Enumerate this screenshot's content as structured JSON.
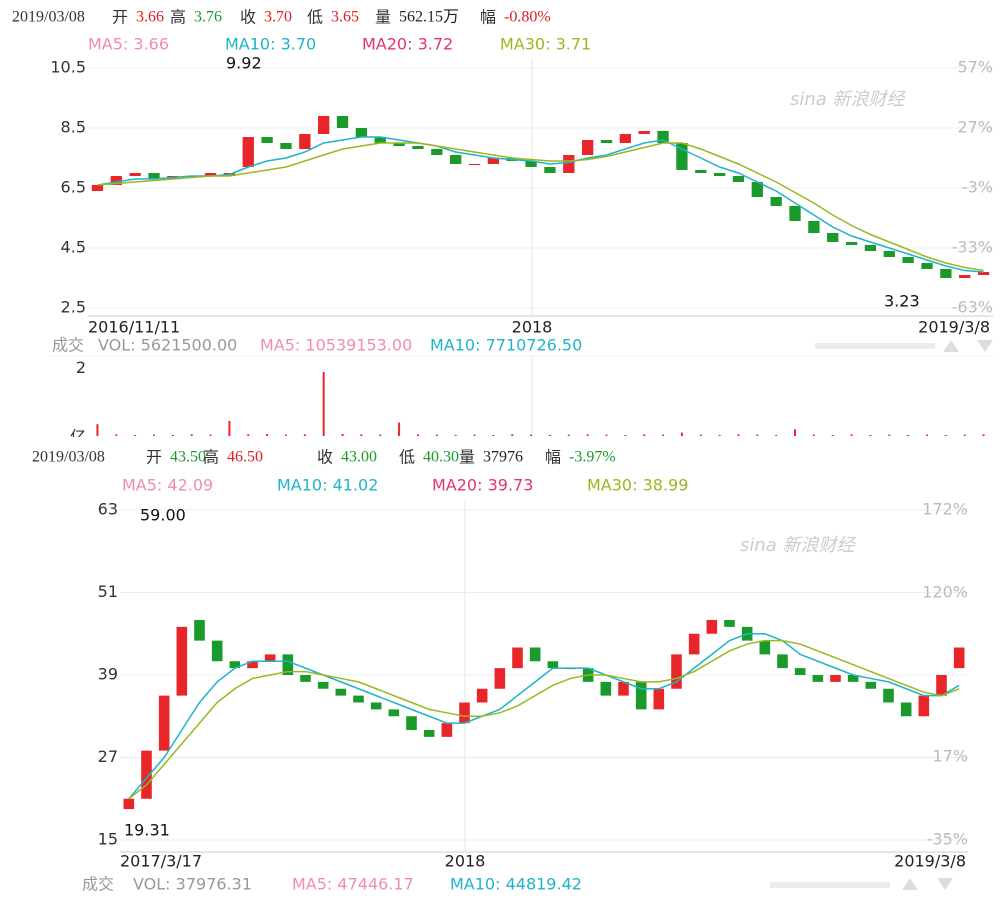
{
  "chart_data": [
    {
      "type": "candlestick",
      "date": "2019/03/08",
      "header": [
        {
          "label": "开",
          "value": "3.66",
          "color": "#e0201f"
        },
        {
          "label": "高",
          "value": "3.76",
          "color": "#1a9a2a"
        },
        {
          "label": "收",
          "value": "3.70",
          "color": "#e0201f"
        },
        {
          "label": "低",
          "value": "3.65",
          "color": "#e0201f"
        },
        {
          "label": "量",
          "value": "562.15万",
          "color": "#222222"
        },
        {
          "label": "幅",
          "value": "-0.80%",
          "color": "#e0201f"
        }
      ],
      "ma_legend": [
        {
          "text": "MA5: 3.66",
          "color": "#f08cb0"
        },
        {
          "text": "MA10: 3.70",
          "color": "#1eb4cc"
        },
        {
          "text": "MA20: 3.72",
          "color": "#e0336f"
        },
        {
          "text": "MA30: 3.71",
          "color": "#9ab81e"
        }
      ],
      "watermark": "sina 新浪财经",
      "open": [
        6.4,
        6.6,
        6.9,
        7.0,
        6.8,
        6.9,
        6.9,
        6.9,
        7.2,
        8.2,
        8.0,
        7.8,
        8.3,
        8.9,
        8.5,
        8.2,
        8.0,
        7.9,
        7.8,
        7.6,
        7.3,
        7.3,
        7.5,
        7.4,
        7.2,
        7.0,
        7.6,
        8.1,
        8.0,
        8.3,
        8.4,
        8.0,
        7.1,
        7.0,
        6.9,
        6.7,
        6.2,
        5.9,
        5.4,
        5.0,
        4.7,
        4.6,
        4.4,
        4.2,
        4.0,
        3.8,
        3.5,
        3.6
      ],
      "close": [
        6.6,
        6.9,
        7.0,
        6.8,
        6.9,
        6.9,
        7.0,
        7.0,
        8.2,
        8.0,
        7.8,
        8.3,
        8.9,
        8.5,
        8.2,
        8.0,
        7.9,
        7.8,
        7.6,
        7.3,
        7.3,
        7.5,
        7.4,
        7.2,
        7.0,
        7.6,
        8.1,
        8.0,
        8.3,
        8.4,
        8.0,
        7.1,
        7.0,
        6.9,
        6.7,
        6.2,
        5.9,
        5.4,
        5.0,
        4.7,
        4.6,
        4.4,
        4.2,
        4.0,
        3.8,
        3.5,
        3.6,
        3.7
      ],
      "up_color": "#e8262a",
      "down_color": "#1a9a2a",
      "ma_lines": [
        {
          "color": "#1eb4cc",
          "values": [
            6.6,
            6.7,
            6.8,
            6.8,
            6.85,
            6.9,
            6.9,
            6.95,
            7.2,
            7.4,
            7.5,
            7.7,
            8.0,
            8.1,
            8.2,
            8.2,
            8.1,
            8.0,
            7.9,
            7.7,
            7.6,
            7.5,
            7.45,
            7.4,
            7.3,
            7.35,
            7.5,
            7.6,
            7.8,
            8.0,
            8.1,
            7.8,
            7.5,
            7.2,
            7.0,
            6.7,
            6.4,
            6.0,
            5.6,
            5.2,
            4.9,
            4.7,
            4.5,
            4.3,
            4.1,
            3.9,
            3.75,
            3.7
          ]
        },
        {
          "color": "#9ab81e",
          "values": [
            6.6,
            6.65,
            6.7,
            6.75,
            6.8,
            6.85,
            6.9,
            6.9,
            7.0,
            7.1,
            7.2,
            7.4,
            7.6,
            7.8,
            7.9,
            8.0,
            8.0,
            8.0,
            7.9,
            7.8,
            7.7,
            7.6,
            7.5,
            7.45,
            7.4,
            7.4,
            7.45,
            7.55,
            7.7,
            7.85,
            8.0,
            8.0,
            7.8,
            7.55,
            7.3,
            7.0,
            6.7,
            6.35,
            6.0,
            5.6,
            5.25,
            4.95,
            4.7,
            4.45,
            4.2,
            4.0,
            3.85,
            3.75
          ]
        }
      ],
      "ylim": [
        2.5,
        10.5
      ],
      "yticks": [
        10.5,
        8.5,
        6.5,
        4.5,
        2.5
      ],
      "y2lim": [
        -63,
        57
      ],
      "y2ticks": [
        {
          "value": 57,
          "label": "57%"
        },
        {
          "value": 27,
          "label": "27%"
        },
        {
          "value": -3,
          "label": "-3%"
        },
        {
          "value": -33,
          "label": "-33%"
        },
        {
          "value": -63,
          "label": "-63%"
        }
      ],
      "x_labels": [
        "2016/11/11",
        "2018",
        "2019/3/8"
      ],
      "annotations": [
        "9.92",
        "3.23"
      ],
      "vol_legend": [
        {
          "text": "成交",
          "color": "#999999"
        },
        {
          "text": "VOL: 5621500.00",
          "color": "#999999"
        },
        {
          "text": "MA5: 10539153.00",
          "color": "#f08cb0"
        },
        {
          "text": "MA10: 7710726.50",
          "color": "#1eb4cc"
        }
      ],
      "grid": true
    },
    {
      "type": "bar",
      "color": "#e8262a",
      "unit": "亿",
      "values": [
        0.35,
        0.05,
        0.03,
        0.04,
        0.03,
        0.05,
        0.04,
        0.45,
        0.05,
        0.06,
        0.04,
        0.05,
        1.9,
        0.06,
        0.05,
        0.04,
        0.4,
        0.05,
        0.04,
        0.03,
        0.04,
        0.03,
        0.05,
        0.04,
        0.03,
        0.04,
        0.05,
        0.04,
        0.03,
        0.05,
        0.04,
        0.1,
        0.04,
        0.03,
        0.05,
        0.04,
        0.03,
        0.2,
        0.04,
        0.03,
        0.05,
        0.03,
        0.04,
        0.03,
        0.04,
        0.03,
        0.04,
        0.05
      ],
      "ylim": [
        0,
        2.2
      ],
      "yticks": [
        2
      ]
    },
    {
      "type": "candlestick",
      "date": "2019/03/08",
      "header": [
        {
          "label": "开",
          "value": "43.50",
          "color": "#1a9a2a"
        },
        {
          "label": "高",
          "value": "46.50",
          "color": "#e0201f"
        },
        {
          "label": "收",
          "value": "43.00",
          "color": "#1a9a2a"
        },
        {
          "label": "低",
          "value": "40.30",
          "color": "#1a9a2a"
        },
        {
          "label": "量",
          "value": "37976",
          "color": "#222222"
        },
        {
          "label": "幅",
          "value": "-3.97%",
          "color": "#1a9a2a"
        }
      ],
      "ma_legend": [
        {
          "text": "MA5: 42.09",
          "color": "#f08cb0"
        },
        {
          "text": "MA10: 41.02",
          "color": "#1eb4cc"
        },
        {
          "text": "MA20: 39.73",
          "color": "#e0336f"
        },
        {
          "text": "MA30: 38.99",
          "color": "#9ab81e"
        }
      ],
      "watermark": "sina 新浪财经",
      "open": [
        19.5,
        21,
        28,
        36,
        47,
        44,
        41,
        40,
        41,
        42,
        39,
        38,
        37,
        36,
        35,
        34,
        33,
        31,
        30,
        32,
        35,
        37,
        40,
        43,
        41,
        40,
        40,
        38,
        36,
        38,
        34,
        37,
        42,
        45,
        47,
        46,
        44,
        42,
        40,
        39,
        38,
        39,
        38,
        37,
        35,
        33,
        36,
        40
      ],
      "close": [
        21,
        28,
        36,
        46,
        44,
        41,
        40,
        41,
        42,
        39,
        38,
        37,
        36,
        35,
        34,
        33,
        31,
        30,
        32,
        35,
        37,
        40,
        43,
        41,
        40,
        40,
        38,
        36,
        38,
        34,
        37,
        42,
        45,
        47,
        46,
        44,
        42,
        40,
        39,
        38,
        39,
        38,
        37,
        35,
        33,
        36,
        39,
        43
      ],
      "up_color": "#e8262a",
      "down_color": "#1a9a2a",
      "ma_lines": [
        {
          "color": "#1eb4cc",
          "values": [
            21,
            24,
            27,
            31,
            35,
            38,
            40,
            41,
            41,
            41,
            40,
            39,
            38,
            37,
            36,
            35,
            34,
            33,
            32,
            32,
            33,
            34,
            36,
            38,
            40,
            40,
            40,
            39,
            38,
            37,
            37,
            38,
            40,
            42,
            44,
            45,
            45,
            44,
            42,
            41,
            40,
            39,
            38.5,
            38,
            37,
            36,
            36,
            37.5
          ]
        },
        {
          "color": "#9ab81e",
          "values": [
            21,
            23,
            26,
            29,
            32,
            35,
            37,
            38.5,
            39,
            39.5,
            39.5,
            39,
            38.5,
            38,
            37,
            36,
            35,
            34,
            33.5,
            33,
            33,
            33.5,
            34.5,
            36,
            37.5,
            38.5,
            39,
            39,
            38.5,
            38,
            38,
            38.5,
            39.5,
            41,
            42.5,
            43.5,
            44,
            44,
            43.5,
            42.5,
            41.5,
            40.5,
            39.5,
            38.5,
            37.5,
            36.5,
            36,
            37
          ]
        }
      ],
      "ylim": [
        15,
        63
      ],
      "yticks": [
        63,
        51,
        39,
        27,
        15
      ],
      "y2lim": [
        -35,
        172
      ],
      "y2ticks": [
        {
          "value": 172,
          "label": "172%"
        },
        {
          "value": 120,
          "label": "120%"
        },
        {
          "value": 17,
          "label": "17%"
        },
        {
          "value": -35,
          "label": "-35%"
        }
      ],
      "x_labels": [
        "2017/3/17",
        "2018",
        "2019/3/8"
      ],
      "annotations": [
        "59.00",
        "19.31"
      ],
      "vol_legend": [
        {
          "text": "成交",
          "color": "#999999"
        },
        {
          "text": "VOL: 37976.31",
          "color": "#999999"
        },
        {
          "text": "MA5: 47446.17",
          "color": "#f08cb0"
        },
        {
          "text": "MA10: 44819.42",
          "color": "#1eb4cc"
        }
      ],
      "grid": true
    }
  ]
}
